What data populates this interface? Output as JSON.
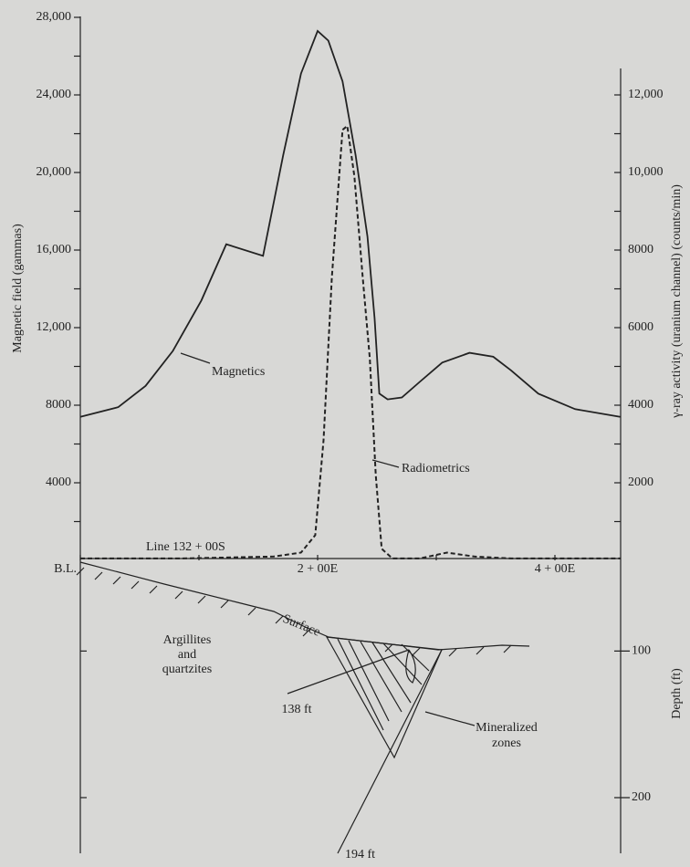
{
  "chart_data": {
    "type": "line",
    "ylabel": "Magnetic field (gammas)",
    "y2label": "γ-ray activity (uranium channel) (counts/min)",
    "ylim": [
      0,
      28000
    ],
    "yticks": [
      {
        "value": 2000,
        "label": null
      },
      4000,
      {
        "value": 6000,
        "label": null
      },
      8000,
      {
        "value": 10000,
        "label": null
      },
      {
        "value": 12000,
        "label": "12,000"
      },
      {
        "value": 14000,
        "label": null
      },
      {
        "value": 16000,
        "label": "16,000"
      },
      {
        "value": 18000,
        "label": null
      },
      {
        "value": 20000,
        "label": "20,000"
      },
      {
        "value": 22000,
        "label": null
      },
      {
        "value": 24000,
        "label": "24,000"
      },
      {
        "value": 26000,
        "label": null
      },
      {
        "value": 28000,
        "label": "28,000"
      }
    ],
    "y2lim": [
      0,
      14000
    ],
    "y2ticks": [
      {
        "value": 1000,
        "label": null
      },
      2000,
      {
        "value": 3000,
        "label": null
      },
      4000,
      {
        "value": 5000,
        "label": null
      },
      6000,
      {
        "value": 7000,
        "label": null
      },
      8000,
      {
        "value": 9000,
        "label": null
      },
      {
        "value": 10000,
        "label": "10,000"
      },
      {
        "value": 11000,
        "label": null
      },
      {
        "value": 12000,
        "label": "12,000"
      }
    ],
    "xlim": [
      0,
      455
    ],
    "xticks": [
      {
        "value": 0,
        "label": "B.L."
      },
      {
        "value": 100,
        "label": null
      },
      {
        "value": 200,
        "label": "2 + 00E"
      },
      {
        "value": 300,
        "label": null
      },
      {
        "value": 400,
        "label": "4 + 00E"
      }
    ],
    "line_label": "Line 132 + 00S",
    "series": [
      {
        "name": "Magnetics",
        "color": "#222",
        "dash": false,
        "x": [
          0,
          32,
          55,
          78,
          102,
          123,
          154,
          171,
          186,
          200,
          209,
          221,
          232,
          242,
          248,
          252,
          259,
          271,
          286,
          305,
          328,
          348,
          363,
          386,
          417,
          455
        ],
        "values": [
          7400,
          7900,
          9000,
          10800,
          13400,
          16300,
          15700,
          20900,
          25100,
          27300,
          26800,
          24700,
          20900,
          16700,
          12500,
          8600,
          8300,
          8400,
          9200,
          10200,
          10700,
          10500,
          9800,
          8600,
          7800,
          7400
        ]
      },
      {
        "name": "Radiometrics",
        "color": "#222",
        "dash": true,
        "axis": "y2",
        "x": [
          0,
          86,
          163,
          186,
          198,
          205,
          212,
          221,
          225,
          231,
          238,
          244,
          249,
          254,
          263,
          286,
          309,
          332,
          363,
          455
        ],
        "values": [
          50,
          50,
          100,
          200,
          650,
          3100,
          7300,
          11100,
          11200,
          9900,
          7300,
          5200,
          2200,
          300,
          50,
          50,
          200,
          100,
          50,
          50
        ]
      }
    ],
    "depth_axis": {
      "label": "Depth (ft)",
      "lim": [
        40,
        238
      ],
      "ticks": [
        100,
        200
      ]
    },
    "section_labels": {
      "surface": "Surface",
      "rock": [
        "Argillites",
        "and",
        "quartzites"
      ],
      "hole1": "138 ft",
      "hole2": "194 ft",
      "zones": [
        "Mineralized",
        "zones"
      ]
    }
  }
}
